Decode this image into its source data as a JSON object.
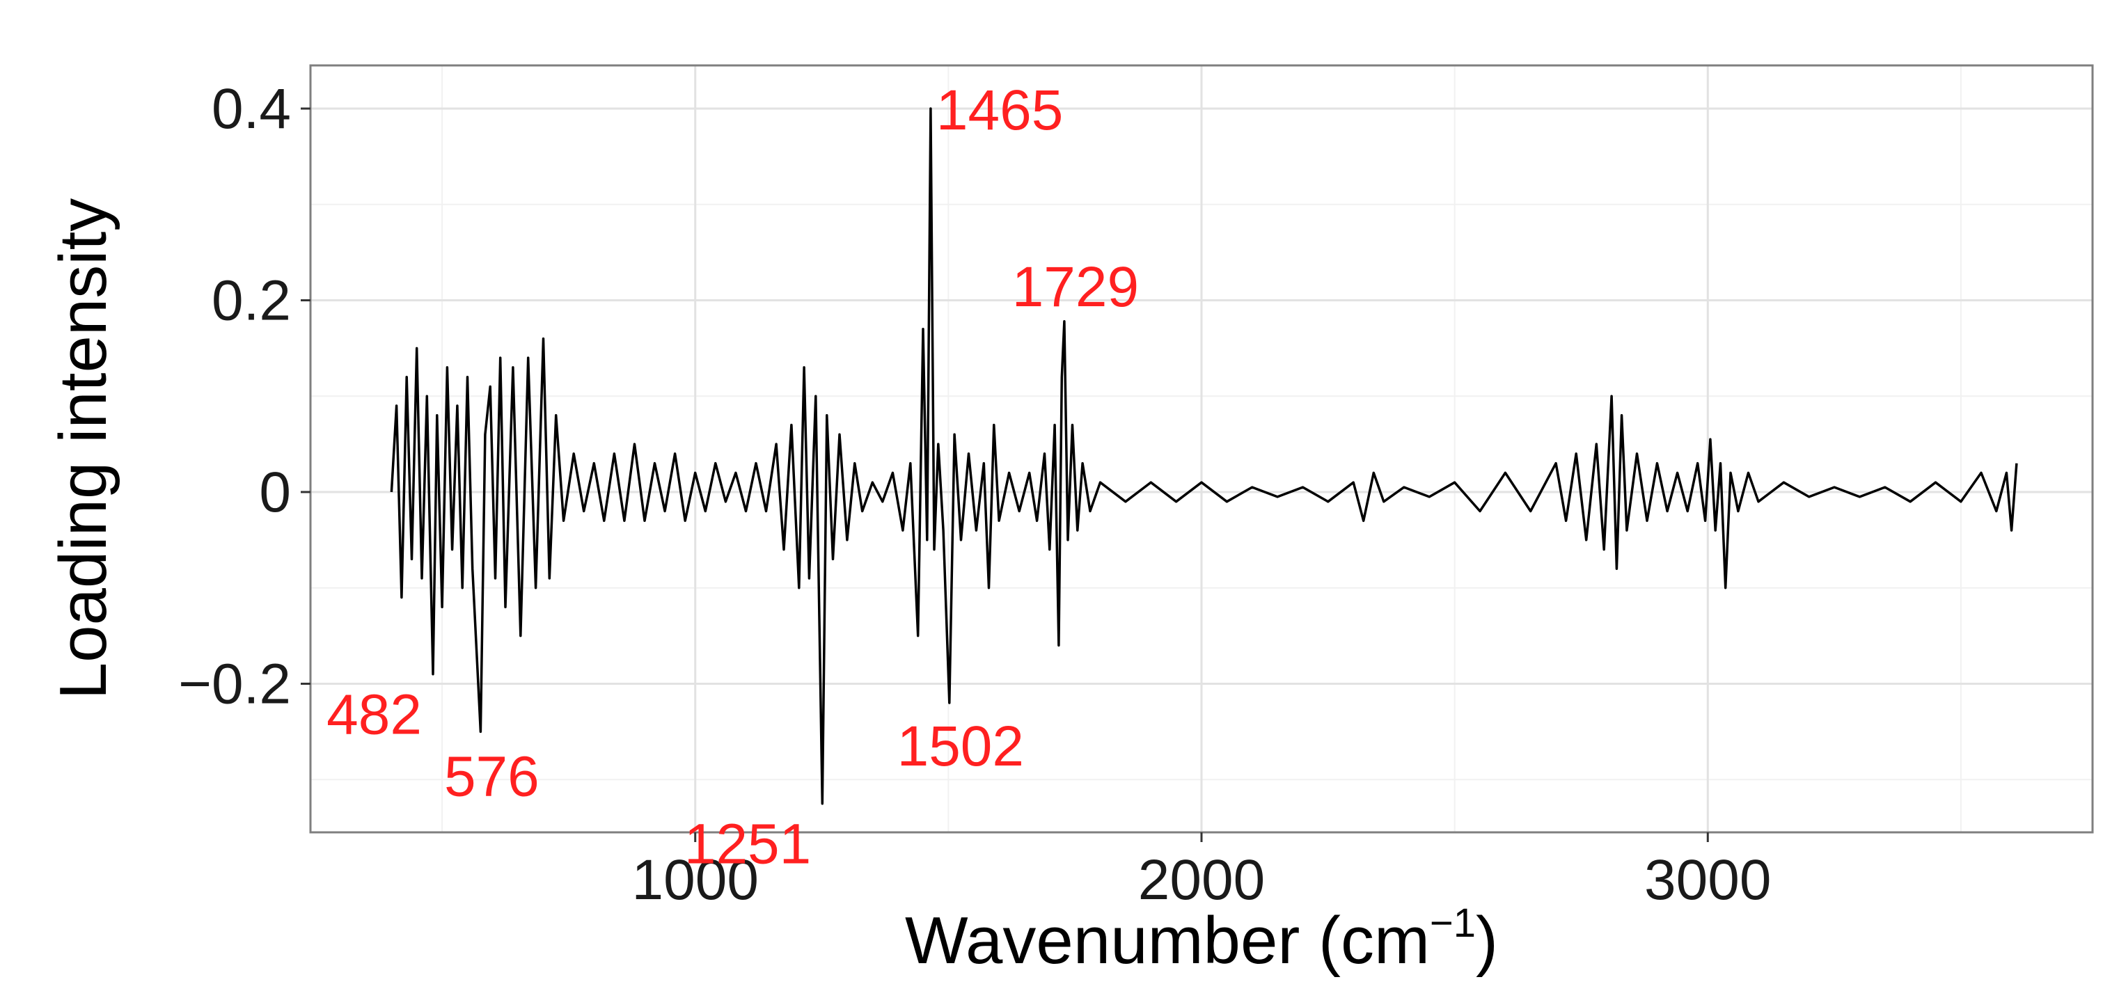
{
  "chart_data": {
    "type": "line",
    "xlabel": "Wavenumber (cm",
    "xlabel_superscript": "−1",
    "xlabel_suffix": ")",
    "ylabel": "Loading intensity",
    "xlim": [
      240,
      3760
    ],
    "ylim": [
      -0.355,
      0.445
    ],
    "x_ticks": [
      1000,
      2000,
      3000
    ],
    "x_tick_labels": [
      "1000",
      "2000",
      "3000"
    ],
    "y_ticks": [
      -0.2,
      0,
      0.2,
      0.4
    ],
    "y_tick_labels": [
      "−0.2",
      "0",
      "0.2",
      "0.4"
    ],
    "grid": true,
    "legend": "none",
    "colors": {
      "line": "#000000",
      "annotation": "#ff2020",
      "panel_border": "#7f7f7f",
      "grid_major": "#e2e2e2",
      "grid_minor": "#f1f1f1"
    },
    "annotations": [
      {
        "label": "1465",
        "x": 1465,
        "y": 0.4,
        "anchor": "right"
      },
      {
        "label": "1729",
        "x": 1729,
        "y": 0.178,
        "anchor": "above"
      },
      {
        "label": "482",
        "x": 482,
        "y": -0.19,
        "anchor": "below-left"
      },
      {
        "label": "576",
        "x": 576,
        "y": -0.25,
        "anchor": "below-right"
      },
      {
        "label": "1251",
        "x": 1251,
        "y": -0.325,
        "anchor": "below-left"
      },
      {
        "label": "1502",
        "x": 1502,
        "y": -0.22,
        "anchor": "below"
      }
    ],
    "series": [
      {
        "values": [
          [
            400,
            0.0
          ],
          [
            410,
            0.09
          ],
          [
            420,
            -0.11
          ],
          [
            430,
            0.12
          ],
          [
            440,
            -0.07
          ],
          [
            450,
            0.15
          ],
          [
            460,
            -0.09
          ],
          [
            470,
            0.1
          ],
          [
            482,
            -0.19
          ],
          [
            490,
            0.08
          ],
          [
            500,
            -0.12
          ],
          [
            510,
            0.13
          ],
          [
            520,
            -0.06
          ],
          [
            530,
            0.09
          ],
          [
            540,
            -0.1
          ],
          [
            550,
            0.12
          ],
          [
            560,
            -0.08
          ],
          [
            576,
            -0.25
          ],
          [
            585,
            0.06
          ],
          [
            595,
            0.11
          ],
          [
            605,
            -0.09
          ],
          [
            615,
            0.14
          ],
          [
            625,
            -0.12
          ],
          [
            640,
            0.13
          ],
          [
            655,
            -0.15
          ],
          [
            670,
            0.14
          ],
          [
            685,
            -0.1
          ],
          [
            700,
            0.16
          ],
          [
            712,
            -0.09
          ],
          [
            725,
            0.08
          ],
          [
            740,
            -0.03
          ],
          [
            760,
            0.04
          ],
          [
            780,
            -0.02
          ],
          [
            800,
            0.03
          ],
          [
            820,
            -0.03
          ],
          [
            840,
            0.04
          ],
          [
            860,
            -0.03
          ],
          [
            880,
            0.05
          ],
          [
            900,
            -0.03
          ],
          [
            920,
            0.03
          ],
          [
            940,
            -0.02
          ],
          [
            960,
            0.04
          ],
          [
            980,
            -0.03
          ],
          [
            1000,
            0.02
          ],
          [
            1020,
            -0.02
          ],
          [
            1040,
            0.03
          ],
          [
            1060,
            -0.01
          ],
          [
            1080,
            0.02
          ],
          [
            1100,
            -0.02
          ],
          [
            1120,
            0.03
          ],
          [
            1140,
            -0.02
          ],
          [
            1160,
            0.05
          ],
          [
            1175,
            -0.06
          ],
          [
            1190,
            0.07
          ],
          [
            1205,
            -0.1
          ],
          [
            1215,
            0.13
          ],
          [
            1225,
            -0.09
          ],
          [
            1238,
            0.1
          ],
          [
            1251,
            -0.325
          ],
          [
            1260,
            0.08
          ],
          [
            1272,
            -0.07
          ],
          [
            1285,
            0.06
          ],
          [
            1300,
            -0.05
          ],
          [
            1315,
            0.03
          ],
          [
            1330,
            -0.02
          ],
          [
            1350,
            0.01
          ],
          [
            1370,
            -0.01
          ],
          [
            1390,
            0.02
          ],
          [
            1410,
            -0.04
          ],
          [
            1425,
            0.03
          ],
          [
            1440,
            -0.15
          ],
          [
            1450,
            0.17
          ],
          [
            1458,
            -0.05
          ],
          [
            1465,
            0.4
          ],
          [
            1472,
            -0.06
          ],
          [
            1480,
            0.05
          ],
          [
            1490,
            -0.04
          ],
          [
            1502,
            -0.22
          ],
          [
            1512,
            0.06
          ],
          [
            1525,
            -0.05
          ],
          [
            1540,
            0.04
          ],
          [
            1555,
            -0.04
          ],
          [
            1570,
            0.03
          ],
          [
            1580,
            -0.1
          ],
          [
            1590,
            0.07
          ],
          [
            1600,
            -0.03
          ],
          [
            1620,
            0.02
          ],
          [
            1640,
            -0.02
          ],
          [
            1660,
            0.02
          ],
          [
            1675,
            -0.03
          ],
          [
            1690,
            0.04
          ],
          [
            1700,
            -0.06
          ],
          [
            1710,
            0.07
          ],
          [
            1718,
            -0.16
          ],
          [
            1724,
            0.12
          ],
          [
            1729,
            0.178
          ],
          [
            1736,
            -0.05
          ],
          [
            1745,
            0.07
          ],
          [
            1755,
            -0.04
          ],
          [
            1765,
            0.03
          ],
          [
            1780,
            -0.02
          ],
          [
            1800,
            0.01
          ],
          [
            1850,
            -0.01
          ],
          [
            1900,
            0.01
          ],
          [
            1950,
            -0.01
          ],
          [
            2000,
            0.01
          ],
          [
            2050,
            -0.01
          ],
          [
            2100,
            0.005
          ],
          [
            2150,
            -0.005
          ],
          [
            2200,
            0.005
          ],
          [
            2250,
            -0.01
          ],
          [
            2300,
            0.01
          ],
          [
            2320,
            -0.03
          ],
          [
            2340,
            0.02
          ],
          [
            2360,
            -0.01
          ],
          [
            2400,
            0.005
          ],
          [
            2450,
            -0.005
          ],
          [
            2500,
            0.01
          ],
          [
            2550,
            -0.02
          ],
          [
            2600,
            0.02
          ],
          [
            2650,
            -0.02
          ],
          [
            2700,
            0.03
          ],
          [
            2720,
            -0.03
          ],
          [
            2740,
            0.04
          ],
          [
            2760,
            -0.05
          ],
          [
            2780,
            0.05
          ],
          [
            2795,
            -0.06
          ],
          [
            2810,
            0.1
          ],
          [
            2820,
            -0.08
          ],
          [
            2830,
            0.08
          ],
          [
            2840,
            -0.04
          ],
          [
            2860,
            0.04
          ],
          [
            2880,
            -0.03
          ],
          [
            2900,
            0.03
          ],
          [
            2920,
            -0.02
          ],
          [
            2940,
            0.02
          ],
          [
            2960,
            -0.02
          ],
          [
            2980,
            0.03
          ],
          [
            2995,
            -0.03
          ],
          [
            3005,
            0.055
          ],
          [
            3015,
            -0.04
          ],
          [
            3025,
            0.03
          ],
          [
            3035,
            -0.1
          ],
          [
            3045,
            0.02
          ],
          [
            3060,
            -0.02
          ],
          [
            3080,
            0.02
          ],
          [
            3100,
            -0.01
          ],
          [
            3150,
            0.01
          ],
          [
            3200,
            -0.005
          ],
          [
            3250,
            0.005
          ],
          [
            3300,
            -0.005
          ],
          [
            3350,
            0.005
          ],
          [
            3400,
            -0.01
          ],
          [
            3450,
            0.01
          ],
          [
            3500,
            -0.01
          ],
          [
            3540,
            0.02
          ],
          [
            3570,
            -0.02
          ],
          [
            3590,
            0.02
          ],
          [
            3600,
            -0.04
          ],
          [
            3610,
            0.03
          ]
        ]
      }
    ]
  }
}
